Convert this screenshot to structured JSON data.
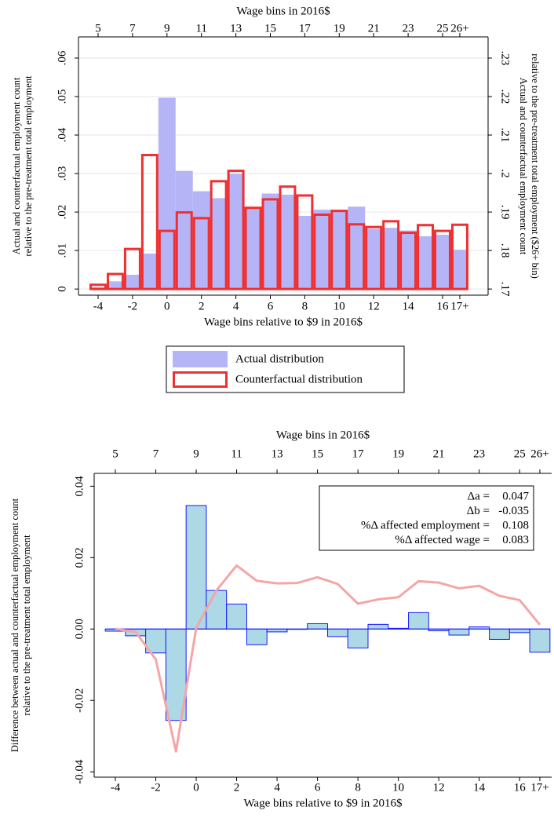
{
  "chart_data": [
    {
      "type": "bar",
      "x2_title": "Wage bins in 2016$",
      "xlabel": "Wage bins relative to $9 in 2016$",
      "ylabel": [
        "Actual and counterfactual employment count",
        "relative to the pre-treatment total employment"
      ],
      "y2label": [
        "Actual and counterfactual employment count",
        "relative to the pre-treatment total employment ($26+ bin)"
      ],
      "categories": [
        "-4",
        null,
        "-2",
        null,
        "0",
        null,
        "2",
        null,
        "4",
        null,
        "6",
        null,
        "8",
        null,
        "10",
        null,
        "12",
        null,
        "14",
        null,
        "16",
        "17+"
      ],
      "x2_categories": [
        "5",
        null,
        "7",
        null,
        "9",
        null,
        "11",
        null,
        "13",
        null,
        "15",
        null,
        "17",
        null,
        "19",
        null,
        "21",
        null,
        "23",
        null,
        "25",
        "26+"
      ],
      "ylim": [
        -0.0016,
        0.0655
      ],
      "yticks": [
        0,
        {
          "value": 0.01,
          "label": ".01"
        },
        {
          "value": 0.02,
          "label": ".02"
        },
        {
          "value": 0.03,
          "label": ".03"
        },
        {
          "value": 0.04,
          "label": ".04"
        },
        {
          "value": 0.05,
          "label": ".05"
        },
        {
          "value": 0.06,
          "label": ".06"
        }
      ],
      "y2lim": [
        0.1684,
        0.2355
      ],
      "y2ticks": [
        {
          "value": 0.17,
          "label": ".17"
        },
        {
          "value": 0.18,
          "label": ".18"
        },
        {
          "value": 0.19,
          "label": ".19"
        },
        {
          "value": 0.2,
          "label": ".2"
        },
        {
          "value": 0.21,
          "label": ".21"
        },
        {
          "value": 0.22,
          "label": ".22"
        },
        {
          "value": 0.23,
          "label": ".23"
        }
      ],
      "y2_last_category": true,
      "grid": true,
      "legend": "bottom",
      "series": [
        {
          "name": "Actual distribution",
          "color": "#b4b4f7",
          "style": "filled",
          "values": [
            0.0005,
            0.002,
            0.0037,
            0.0092,
            0.0497,
            0.0307,
            0.0254,
            0.0236,
            0.0299,
            0.021,
            0.0248,
            0.0245,
            0.019,
            0.0206,
            0.0205,
            0.0214,
            0.0156,
            0.0159,
            0.0152,
            0.0137,
            0.0141,
            0.1802
          ]
        },
        {
          "name": "Counterfactual distribution",
          "color": "#f03030",
          "style": "outline",
          "values": [
            0.0011,
            0.0039,
            0.0104,
            0.0348,
            0.0151,
            0.0199,
            0.0184,
            0.028,
            0.0307,
            0.0211,
            0.0233,
            0.0266,
            0.0243,
            0.0193,
            0.0203,
            0.0168,
            0.0161,
            0.0176,
            0.0146,
            0.0166,
            0.0151,
            0.1867
          ]
        }
      ]
    },
    {
      "type": "bar",
      "x2_title": "Wage bins in 2016$",
      "xlabel": "Wage bins relative to $9 in 2016$",
      "ylabel": [
        "Difference between actual and counterfactual employment count",
        "relative to the pre-treatment total employment"
      ],
      "categories": [
        "-4",
        null,
        "-2",
        null,
        "0",
        null,
        "2",
        null,
        "4",
        null,
        "6",
        null,
        "8",
        null,
        "10",
        null,
        "12",
        null,
        "14",
        null,
        "16",
        "17+"
      ],
      "x2_categories": [
        "5",
        null,
        "7",
        null,
        "9",
        null,
        "11",
        null,
        "13",
        null,
        "15",
        null,
        "17",
        null,
        "19",
        null,
        "21",
        null,
        "23",
        null,
        "25",
        "26+"
      ],
      "ylim": [
        -0.0415,
        0.0436
      ],
      "yticks": [
        {
          "value": -0.04,
          "label": "-0.04"
        },
        {
          "value": -0.02,
          "label": "-0.02"
        },
        {
          "value": 0,
          "label": "0.00"
        },
        {
          "value": 0.02,
          "label": "0.02"
        },
        {
          "value": 0.04,
          "label": "0.04"
        }
      ],
      "grid": false,
      "series": [
        {
          "type": "bar",
          "color": "#add8e6",
          "edgecolor": "#1a1aff",
          "values": [
            -0.0006,
            -0.0019,
            -0.0067,
            -0.0256,
            0.0346,
            0.0108,
            0.007,
            -0.0044,
            -0.0008,
            -0.0001,
            0.0015,
            -0.0021,
            -0.0053,
            0.0013,
            0.0002,
            0.0046,
            -0.0005,
            -0.0017,
            0.0006,
            -0.0029,
            -0.001,
            -0.0065
          ]
        },
        {
          "type": "line",
          "color": "#f4a6a6",
          "values": [
            0,
            -0.0008,
            -0.0085,
            -0.0343,
            0.0003,
            0.0108,
            0.0178,
            0.0135,
            0.0128,
            0.0129,
            0.0145,
            0.0126,
            0.0071,
            0.0083,
            0.0089,
            0.0134,
            0.013,
            0.0114,
            0.0121,
            0.0093,
            0.0081,
            0.0012
          ]
        }
      ],
      "annotations": [
        {
          "label": "Δa =",
          "value": 0.047
        },
        {
          "label": "Δb =",
          "value": -0.035
        },
        {
          "label": "%Δ affected employment =",
          "value": 0.108
        },
        {
          "label": "%Δ affected wage =",
          "value": 0.083
        }
      ]
    }
  ]
}
